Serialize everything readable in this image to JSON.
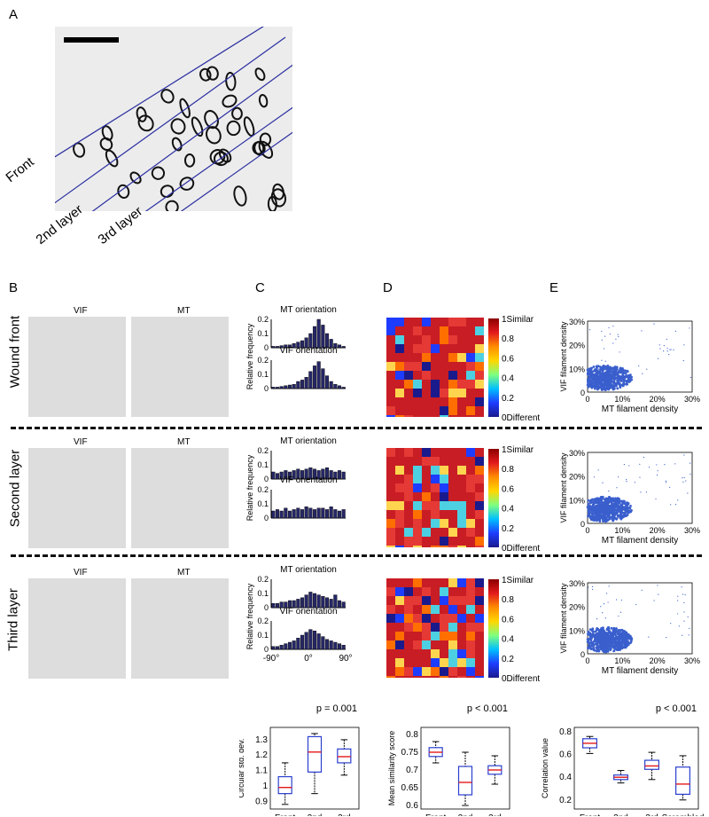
{
  "panel_letters": {
    "a": "A",
    "b": "B",
    "c": "C",
    "d": "D",
    "e": "E"
  },
  "panelA": {
    "front": "Front",
    "layer2": "2nd layer",
    "layer3": "3rd layer"
  },
  "rows": [
    {
      "label": "Wound front"
    },
    {
      "label": "Second layer"
    },
    {
      "label": "Third layer"
    }
  ],
  "image_titles": {
    "vif": "VIF",
    "mt": "MT"
  },
  "hist": {
    "mt_title": "MT orientation",
    "vif_title": "VIF orientation",
    "ylabel": "Relative frequency",
    "xticks": [
      "-90°",
      "0°",
      "90°"
    ],
    "yticks_row1": [
      "0.2",
      "0.1",
      "0"
    ],
    "yticks_row2": [
      "0.2",
      "0.1",
      "0"
    ],
    "yticks_row3": [
      "0.2",
      "0.1",
      "0"
    ],
    "data": [
      {
        "mt": [
          0.01,
          0.01,
          0.015,
          0.02,
          0.02,
          0.03,
          0.04,
          0.05,
          0.07,
          0.1,
          0.15,
          0.2,
          0.16,
          0.1,
          0.06,
          0.03,
          0.02,
          0.01
        ],
        "vif": [
          0.01,
          0.01,
          0.015,
          0.02,
          0.025,
          0.03,
          0.05,
          0.06,
          0.08,
          0.12,
          0.16,
          0.19,
          0.14,
          0.09,
          0.05,
          0.03,
          0.02,
          0.01
        ]
      },
      {
        "mt": [
          0.05,
          0.04,
          0.05,
          0.06,
          0.05,
          0.06,
          0.07,
          0.06,
          0.07,
          0.08,
          0.07,
          0.06,
          0.07,
          0.08,
          0.06,
          0.05,
          0.06,
          0.05
        ],
        "vif": [
          0.05,
          0.06,
          0.05,
          0.07,
          0.05,
          0.06,
          0.07,
          0.06,
          0.08,
          0.07,
          0.06,
          0.07,
          0.07,
          0.06,
          0.08,
          0.06,
          0.05,
          0.06
        ]
      },
      {
        "mt": [
          0.03,
          0.03,
          0.04,
          0.04,
          0.05,
          0.05,
          0.06,
          0.07,
          0.09,
          0.11,
          0.1,
          0.09,
          0.08,
          0.07,
          0.06,
          0.09,
          0.05,
          0.04
        ],
        "vif": [
          0.02,
          0.02,
          0.03,
          0.04,
          0.05,
          0.06,
          0.08,
          0.1,
          0.12,
          0.14,
          0.13,
          0.11,
          0.09,
          0.07,
          0.06,
          0.05,
          0.04,
          0.03
        ]
      }
    ]
  },
  "colorbar": {
    "ticks": [
      "1Similar",
      "0.8",
      "0.6",
      "0.4",
      "0.2",
      "0Different"
    ]
  },
  "scatter": {
    "xlabel": "MT filament density",
    "ylabel": "VIF filament density",
    "xticks": [
      "0",
      "10%",
      "20%",
      "30%"
    ],
    "yticks": [
      "30%",
      "20%",
      "10%",
      "0"
    ]
  },
  "boxplots": [
    {
      "p": "p = 0.001",
      "ylabel": "Circular std. dev.",
      "categories": [
        "Front",
        "2nd",
        "3rd"
      ],
      "yticks": [
        "1.3",
        "1.2",
        "1.1",
        "1",
        "0.9"
      ],
      "ylim": [
        0.85,
        1.38
      ],
      "boxes": [
        {
          "min": 0.88,
          "q1": 0.95,
          "med": 0.99,
          "q3": 1.06,
          "max": 1.15
        },
        {
          "min": 0.95,
          "q1": 1.09,
          "med": 1.22,
          "q3": 1.32,
          "max": 1.34
        },
        {
          "min": 1.07,
          "q1": 1.15,
          "med": 1.19,
          "q3": 1.24,
          "max": 1.3
        }
      ]
    },
    {
      "p": "p < 0.001",
      "ylabel": "Mean similarity score",
      "categories": [
        "Front",
        "2nd",
        "3rd"
      ],
      "yticks": [
        "0.8",
        "0.75",
        "0.7",
        "0.65",
        "0.6"
      ],
      "ylim": [
        0.59,
        0.82
      ],
      "boxes": [
        {
          "min": 0.72,
          "q1": 0.738,
          "med": 0.75,
          "q3": 0.763,
          "max": 0.78
        },
        {
          "min": 0.6,
          "q1": 0.63,
          "med": 0.665,
          "q3": 0.71,
          "max": 0.75
        },
        {
          "min": 0.66,
          "q1": 0.688,
          "med": 0.7,
          "q3": 0.712,
          "max": 0.74
        }
      ]
    },
    {
      "p": "p < 0.001",
      "ylabel": "Correlation value",
      "categories": [
        "Front",
        "2nd",
        "3rd",
        "Scrambled"
      ],
      "yticks": [
        "0.8",
        "0.6",
        "0.4",
        "0.2"
      ],
      "ylim": [
        0.12,
        0.84
      ],
      "boxes": [
        {
          "min": 0.61,
          "q1": 0.66,
          "med": 0.7,
          "q3": 0.74,
          "max": 0.76
        },
        {
          "min": 0.35,
          "q1": 0.38,
          "med": 0.4,
          "q3": 0.42,
          "max": 0.46
        },
        {
          "min": 0.38,
          "q1": 0.47,
          "med": 0.5,
          "q3": 0.55,
          "max": 0.62
        },
        {
          "min": 0.2,
          "q1": 0.25,
          "med": 0.34,
          "q3": 0.49,
          "max": 0.59
        }
      ]
    }
  ],
  "colors": {
    "bar": "#262766",
    "line": "#2b2fa0",
    "box": "#2a3fcf",
    "median": "#e31a1c",
    "scatter": "#3a5fcd"
  }
}
